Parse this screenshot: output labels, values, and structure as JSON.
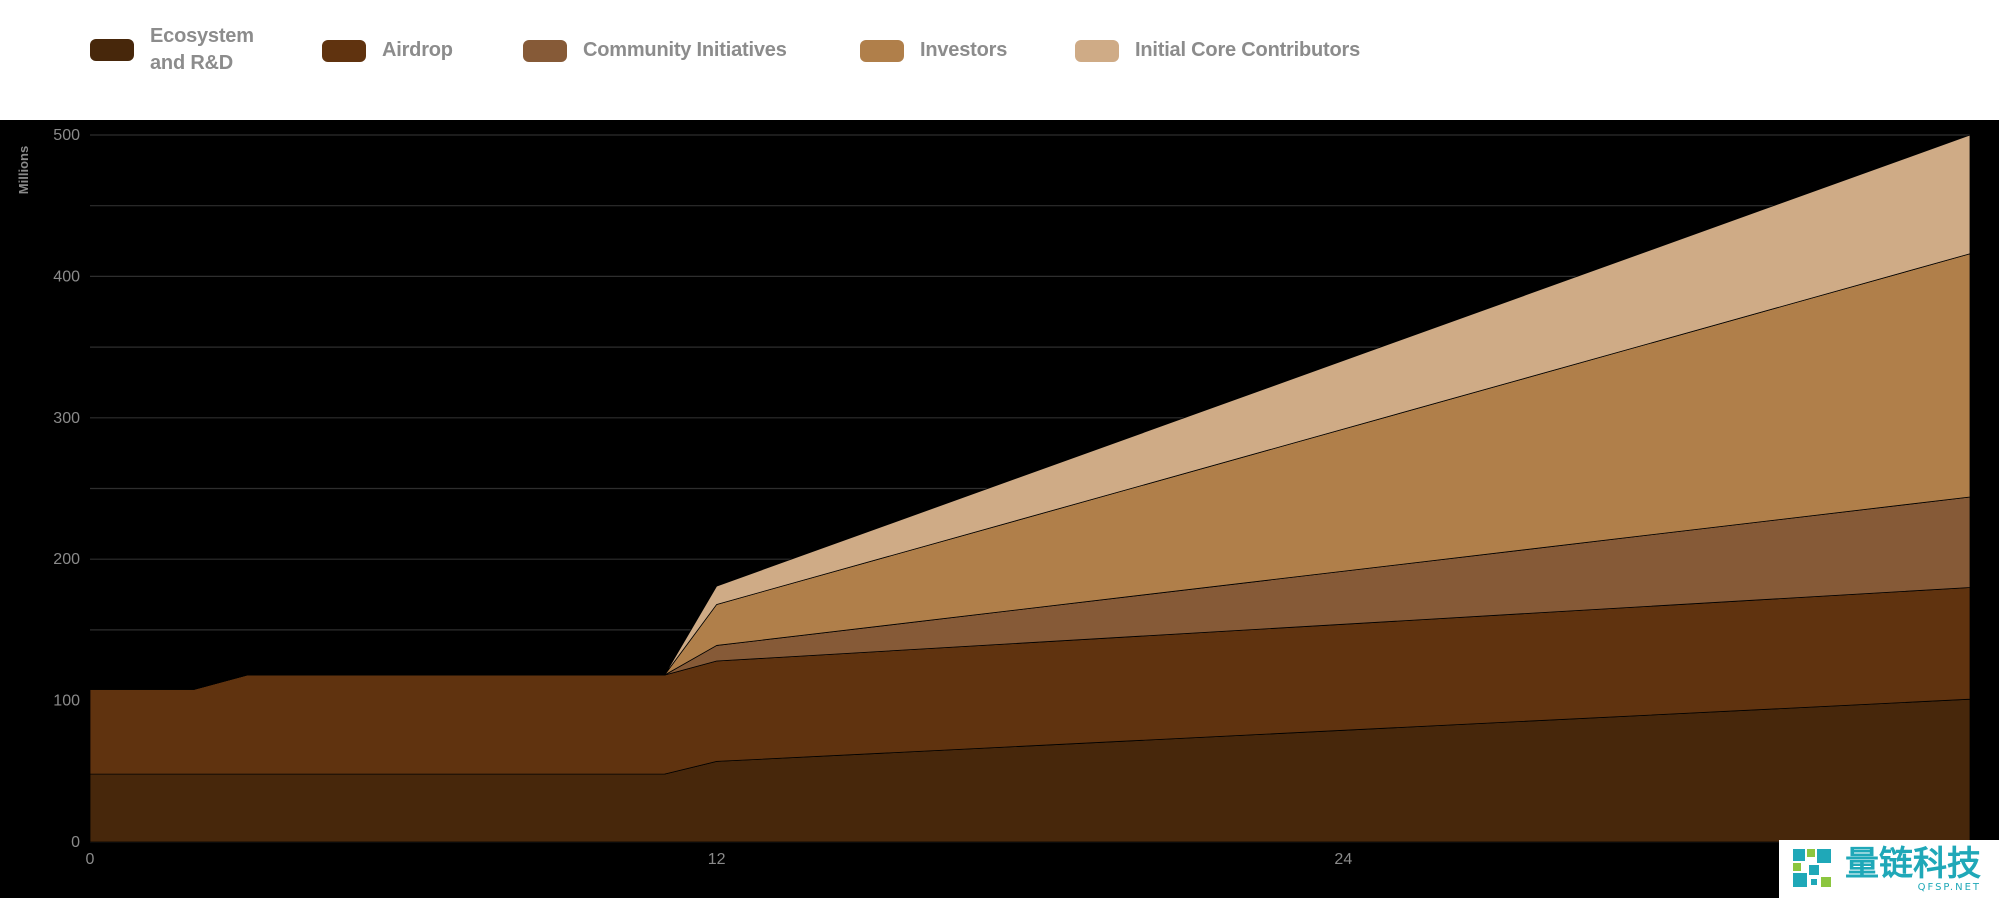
{
  "legend": {
    "items": [
      {
        "label": "Ecosystem\nand R&D",
        "color": "#47270b"
      },
      {
        "label": "Airdrop",
        "color": "#60330f"
      },
      {
        "label": "Community Initiatives",
        "color": "#865a37"
      },
      {
        "label": "Investors",
        "color": "#b07f4a"
      },
      {
        "label": "Initial Core Contributors",
        "color": "#cfab86"
      }
    ]
  },
  "chart_data": {
    "type": "area",
    "stacked": true,
    "ylabel": "Millions",
    "xlabel": "",
    "xlim": [
      0,
      36
    ],
    "ylim": [
      0,
      500
    ],
    "x_ticks": [
      0,
      12,
      24
    ],
    "y_ticks": [
      0,
      100,
      200,
      300,
      400,
      500
    ],
    "grid": true,
    "background": "#000000",
    "x": [
      0,
      2,
      3,
      11,
      12,
      36
    ],
    "series": [
      {
        "name": "Ecosystem and R&D",
        "color": "#47270b",
        "values": [
          48,
          48,
          48,
          48,
          57,
          101
        ]
      },
      {
        "name": "Airdrop",
        "color": "#60330f",
        "values": [
          60,
          60,
          70,
          70,
          71,
          79
        ]
      },
      {
        "name": "Community Initiatives",
        "color": "#865a37",
        "values": [
          0,
          0,
          0,
          0,
          11,
          64
        ]
      },
      {
        "name": "Investors",
        "color": "#b07f4a",
        "values": [
          0,
          0,
          0,
          0,
          29,
          172
        ]
      },
      {
        "name": "Initial Core Contributors",
        "color": "#cfab86",
        "values": [
          0,
          0,
          0,
          0,
          13,
          84
        ]
      }
    ]
  },
  "watermark": {
    "cn": "量链科技",
    "en": "QFSP.NET"
  }
}
